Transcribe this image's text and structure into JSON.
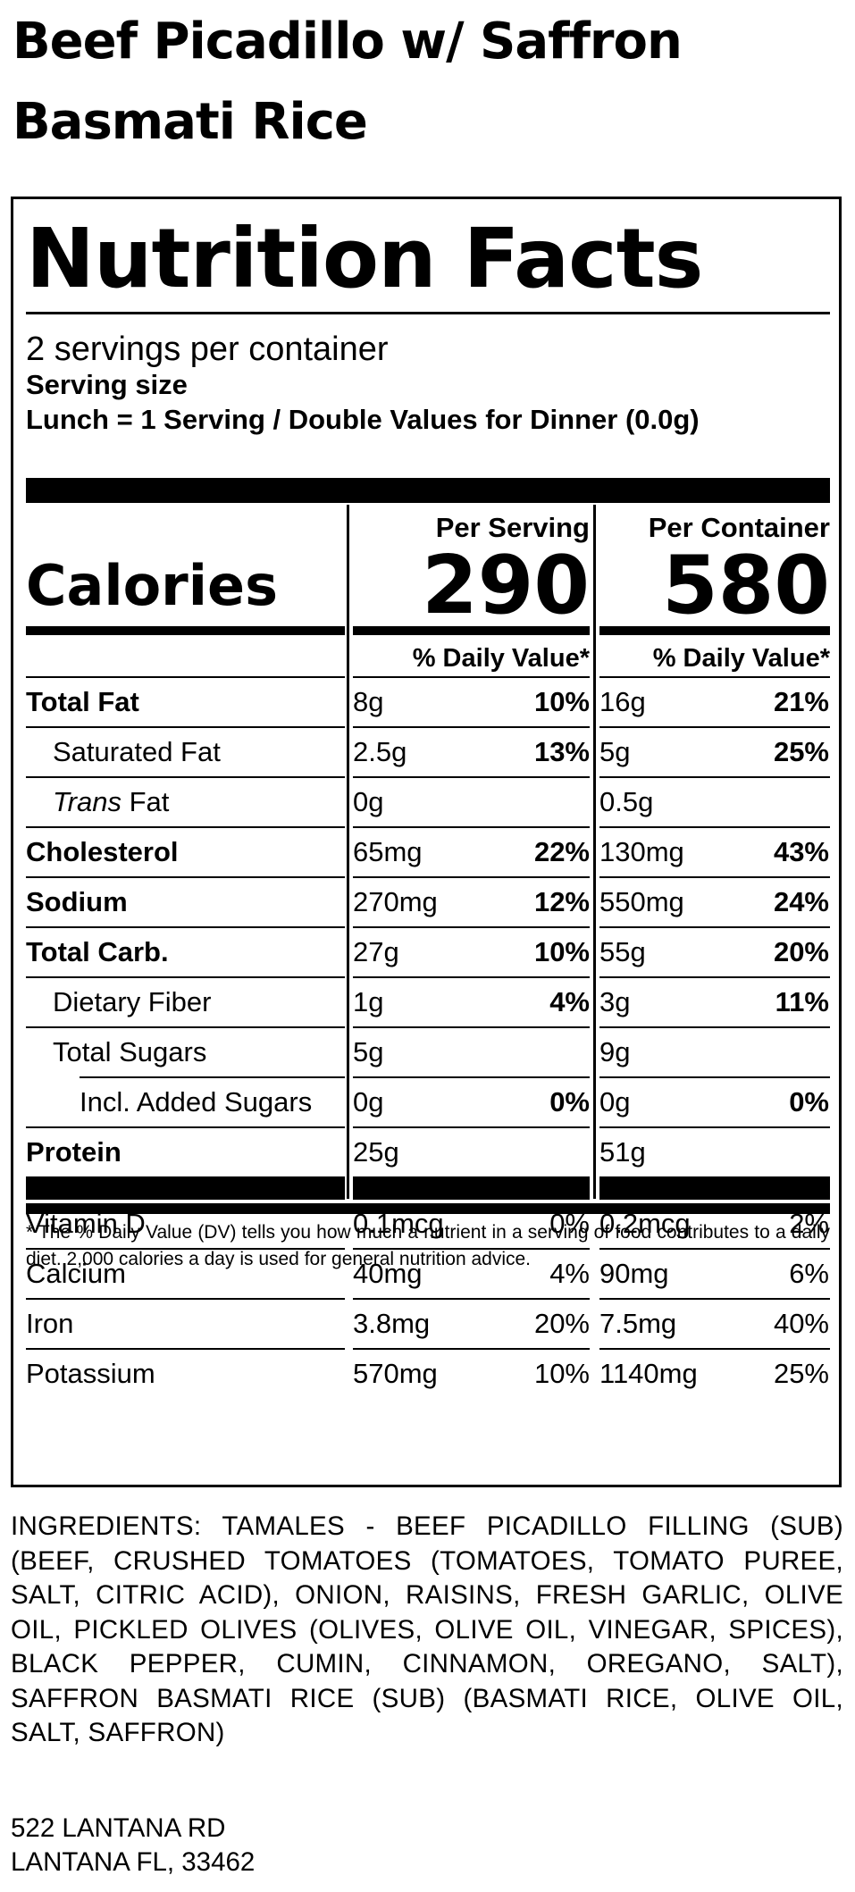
{
  "product_title": "Beef Picadillo w/ Saffron Basmati Rice",
  "label": {
    "heading": "Nutrition Facts",
    "servings_per_container": "2 servings per container",
    "serving_size_label": "Serving size",
    "serving_size_value": "Lunch = 1 Serving / Double Values for Dinner (0.0g)",
    "col1_heading": "Per Serving",
    "col2_heading": "Per Container",
    "calories_label": "Calories",
    "calories_per_serving": "290",
    "calories_per_container": "580",
    "dv_heading": "% Daily Value*",
    "nutrients": [
      {
        "name": "Total Fat",
        "style": "bold",
        "amt1": "8g",
        "pct1": "10%",
        "amt2": "16g",
        "pct2": "21%"
      },
      {
        "name": "Saturated Fat",
        "style": "indent1",
        "amt1": "2.5g",
        "pct1": "13%",
        "amt2": "5g",
        "pct2": "25%"
      },
      {
        "name_italic": "Trans",
        "name": " Fat",
        "style": "indent1",
        "amt1": "0g",
        "pct1": "",
        "amt2": "0.5g",
        "pct2": ""
      },
      {
        "name": "Cholesterol",
        "style": "bold",
        "amt1": "65mg",
        "pct1": "22%",
        "amt2": "130mg",
        "pct2": "43%"
      },
      {
        "name": "Sodium",
        "style": "bold",
        "amt1": "270mg",
        "pct1": "12%",
        "amt2": "550mg",
        "pct2": "24%"
      },
      {
        "name": "Total Carb.",
        "style": "bold",
        "amt1": "27g",
        "pct1": "10%",
        "amt2": "55g",
        "pct2": "20%"
      },
      {
        "name": "Dietary Fiber",
        "style": "indent1",
        "amt1": "1g",
        "pct1": "4%",
        "amt2": "3g",
        "pct2": "11%"
      },
      {
        "name": "Total Sugars",
        "style": "indent1",
        "amt1": "5g",
        "pct1": "",
        "amt2": "9g",
        "pct2": ""
      },
      {
        "name": "Incl. Added Sugars",
        "style": "indent2",
        "amt1": "0g",
        "pct1": "0%",
        "amt2": "0g",
        "pct2": "0%"
      },
      {
        "name": "Protein",
        "style": "bold",
        "amt1": "25g",
        "pct1": "",
        "amt2": "51g",
        "pct2": ""
      }
    ],
    "vitamins": [
      {
        "name": "Vitamin D",
        "amt1": "0.1mcg",
        "pct1": "0%",
        "amt2": "0.2mcg",
        "pct2": "2%"
      },
      {
        "name": "Calcium",
        "amt1": "40mg",
        "pct1": "4%",
        "amt2": "90mg",
        "pct2": "6%"
      },
      {
        "name": "Iron",
        "amt1": "3.8mg",
        "pct1": "20%",
        "amt2": "7.5mg",
        "pct2": "40%"
      },
      {
        "name": "Potassium",
        "amt1": "570mg",
        "pct1": "10%",
        "amt2": "1140mg",
        "pct2": "25%"
      }
    ],
    "footnote": "* The % Daily Value (DV) tells you how much a nutrient in a serving of food contributes to a daily diet. 2,000 calories a day is used for general nutrition advice."
  },
  "ingredients": "INGREDIENTS: TAMALES - BEEF PICADILLO FILLING (SUB) (BEEF, CRUSHED TOMATOES (TOMATOES, TOMATO PUREE, SALT, CITRIC ACID), ONION, RAISINS, FRESH GARLIC, OLIVE OIL, PICKLED OLIVES (OLIVES, OLIVE OIL, VINEGAR, SPICES), BLACK PEPPER, CUMIN, CINNAMON, OREGANO, SALT), SAFFRON BASMATI RICE (SUB) (BASMATI RICE, OLIVE OIL, SALT, SAFFRON)",
  "address": {
    "line1": "522 LANTANA RD",
    "line2": "LANTANA FL, 33462"
  }
}
